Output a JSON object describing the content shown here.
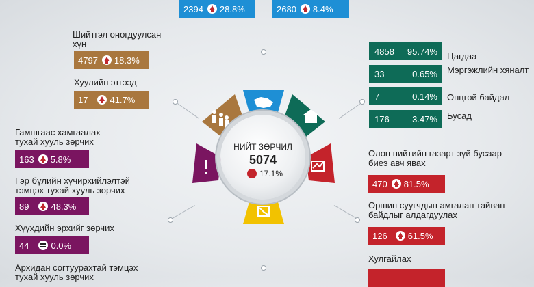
{
  "top": [
    {
      "value": "2394",
      "pct": "28.8%"
    },
    {
      "value": "2680",
      "pct": "8.4%"
    }
  ],
  "left": {
    "shiitgel": {
      "label": "Шийтгэл оногдуулсан хүн",
      "value": "4797",
      "pct": "18.3%"
    },
    "khuuliin": {
      "label": "Хуулийн этгээд",
      "value": "17",
      "pct": "41.7%"
    },
    "gamshig": {
      "label": "Гамшгаас хамгаалах тухай хууль зөрчих",
      "value": "163",
      "pct": "5.8%"
    },
    "geriin": {
      "label": "Гэр бүлийн хүчирхийлэлтэй тэмцэх тухай хууль зөрчих",
      "value": "89",
      "pct": "48.3%"
    },
    "khuukhdiin": {
      "label": "Хүүхдийн эрхийг зөрчих",
      "value": "44",
      "pct": "0.0%"
    },
    "arkhi": {
      "label": "Архидан согтуурахтай тэмцэх тухай хууль зөрчих"
    }
  },
  "center": {
    "title": "НИЙТ ЗӨРЧИЛ",
    "value": "5074",
    "pct": "17.1%"
  },
  "right_green": [
    {
      "value": "4858",
      "pct": "95.74%",
      "label": "Цагдаа"
    },
    {
      "value": "33",
      "pct": "0.65%",
      "label": "Мэргэжлийн хяналт"
    },
    {
      "value": "7",
      "pct": "0.14%",
      "label": "Онцгой байдал"
    },
    {
      "value": "176",
      "pct": "3.47%",
      "label": "Бусад"
    }
  ],
  "right_red": {
    "olon": {
      "label": "Олон нийтийн газарт зүй бусаар биеэ авч явах",
      "value": "470",
      "pct": "81.5%"
    },
    "orshin": {
      "label": "Оршин суугчдын амгалан тайван байдлыг алдагдуулах",
      "value": "126",
      "pct": "61.5%"
    },
    "khulgai": {
      "label": "Хулгайлах"
    }
  },
  "colors": {
    "blue": "#1e8fd5",
    "brown": "#a9773e",
    "purple": "#7a1560",
    "green": "#0e6b57",
    "red": "#c4232b",
    "yellow": "#f2c200"
  }
}
